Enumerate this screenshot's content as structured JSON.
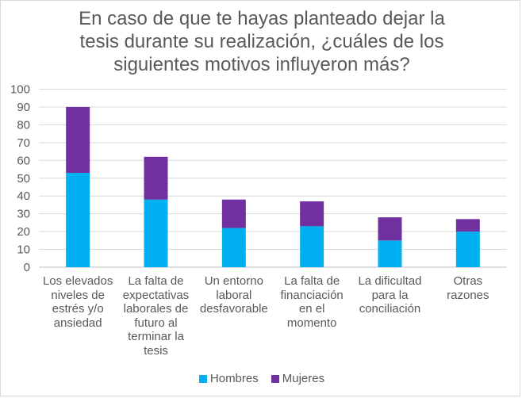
{
  "chart_data": {
    "type": "bar",
    "stacked": true,
    "title": "En caso de que te hayas planteado dejar la tesis durante su realización, ¿cuáles de los siguientes motivos influyeron más?",
    "title_lines": [
      "En caso de que te hayas planteado dejar la",
      "tesis durante su realización, ¿cuáles de los",
      "siguientes motivos influyeron más?"
    ],
    "categories": [
      "Los elevados niveles de estrés y/o ansiedad",
      "La falta de expectativas laborales de futuro al terminar la tesis",
      "Un entorno laboral desfavorable",
      "La falta de financiación en el momento",
      "La dificultad para la conciliación",
      "Otras razones"
    ],
    "category_lines": [
      [
        "Los elevados",
        "niveles de",
        "estrés y/o",
        "ansiedad"
      ],
      [
        "La falta de",
        "expectativas",
        "laborales de",
        "futuro al",
        "terminar la",
        "tesis"
      ],
      [
        "Un entorno",
        "laboral",
        "desfavorable"
      ],
      [
        "La falta de",
        "financiación",
        "en el",
        "momento"
      ],
      [
        "La dificultad",
        "para la",
        "conciliación"
      ],
      [
        "Otras",
        "razones"
      ]
    ],
    "series": [
      {
        "name": "Hombres",
        "color": "#00b0f0",
        "values": [
          53,
          38,
          22,
          23,
          15,
          20
        ]
      },
      {
        "name": "Mujeres",
        "color": "#7030a0",
        "values": [
          37,
          24,
          16,
          14,
          13,
          7
        ]
      }
    ],
    "ylim": [
      0,
      100
    ],
    "yticks": [
      0,
      10,
      20,
      30,
      40,
      50,
      60,
      70,
      80,
      90,
      100
    ],
    "grid": true,
    "legend_position": "bottom",
    "xlabel": "",
    "ylabel": ""
  }
}
